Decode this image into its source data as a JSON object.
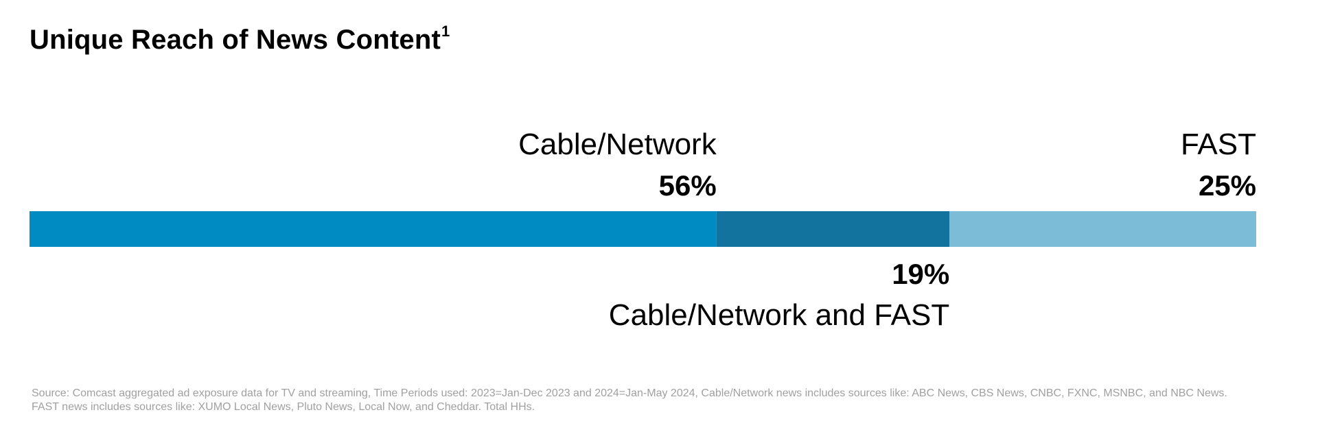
{
  "title": "Unique Reach of News Content",
  "title_superscript": "1",
  "chart_data": {
    "type": "bar",
    "orientation": "horizontal-stacked",
    "segments": [
      {
        "category": "Cable/Network",
        "value": 56,
        "value_label": "56%",
        "color": "#008bc3",
        "label_position": "above"
      },
      {
        "category": "Cable/Network and FAST",
        "value": 19,
        "value_label": "19%",
        "color": "#13739f",
        "label_position": "below"
      },
      {
        "category": "FAST",
        "value": 25,
        "value_label": "25%",
        "color": "#7cbcd7",
        "label_position": "above"
      }
    ],
    "unit": "%",
    "legend": "none",
    "grid": false
  },
  "footnote": "Source: Comcast aggregated ad exposure data for TV and streaming, Time Periods used: 2023=Jan-Dec 2023 and 2024=Jan-May 2024, Cable/Network news includes sources like: ABC News, CBS News, CNBC, FXNC, MSNBC, and NBC News. FAST news includes sources like: XUMO Local News, Pluto News, Local Now, and Cheddar. Total HHs."
}
